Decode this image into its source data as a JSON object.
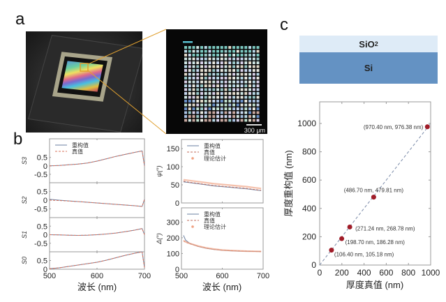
{
  "panels": {
    "a": {
      "letter": "a",
      "photo_alt": "Sensor chip on dark PCB board with iridescent metasurface",
      "micrograph": {
        "scale_bar_label": "300 μm",
        "grid_cols": 19,
        "grid_rows": 20
      },
      "callout_color": "#e0a030"
    },
    "b": {
      "letter": "b"
    },
    "c": {
      "letter": "c",
      "layers": [
        {
          "name": "SiO",
          "sub": "2",
          "color": "#deebf7"
        },
        {
          "name": "Si",
          "sub": "",
          "color": "#6492c3"
        }
      ]
    }
  },
  "chart_data": [
    {
      "id": "stokes",
      "type": "line",
      "xlabel": "波长 (nm)",
      "xlim": [
        500,
        700
      ],
      "xticks": [
        500,
        600,
        700
      ],
      "legend": {
        "entries": [
          "重构值",
          "真值"
        ],
        "placement": "top-left"
      },
      "series_colors": {
        "重构值": "#6a7fa0",
        "真值": "#d9705a"
      },
      "subplots": [
        {
          "ylabel": "S3",
          "ylim": [
            -1,
            1.6
          ],
          "yticks": [
            "0.5",
            "0",
            "-0.5"
          ],
          "ytick_values": [
            0.5,
            0,
            -0.5
          ],
          "x": [
            500,
            520,
            540,
            560,
            580,
            600,
            620,
            640,
            660,
            680,
            695,
            700
          ],
          "series": [
            {
              "name": "重构值",
              "values": [
                0.0,
                0.02,
                0.06,
                0.1,
                0.17,
                0.28,
                0.42,
                0.56,
                0.68,
                0.8,
                0.88,
                0.0
              ]
            },
            {
              "name": "真值",
              "values": [
                0.0,
                0.02,
                0.06,
                0.1,
                0.17,
                0.28,
                0.42,
                0.56,
                0.68,
                0.8,
                0.88,
                0.0
              ]
            }
          ]
        },
        {
          "ylabel": "S2",
          "ylim": [
            -1,
            1
          ],
          "yticks": [
            "0.5",
            "0",
            "-0.5"
          ],
          "ytick_values": [
            0.5,
            0,
            -0.5
          ],
          "x": [
            500,
            520,
            540,
            560,
            580,
            600,
            620,
            640,
            660,
            680,
            695,
            700
          ],
          "series": [
            {
              "name": "重构值",
              "values": [
                0.05,
                0.0,
                -0.04,
                -0.08,
                -0.12,
                -0.16,
                -0.2,
                -0.24,
                -0.28,
                -0.32,
                -0.36,
                0.05
              ]
            },
            {
              "name": "真值",
              "values": [
                0.0,
                -0.02,
                -0.05,
                -0.08,
                -0.12,
                -0.16,
                -0.2,
                -0.24,
                -0.28,
                -0.32,
                -0.36,
                0.05
              ]
            }
          ]
        },
        {
          "ylabel": "S1",
          "ylim": [
            -1,
            1
          ],
          "yticks": [
            "0.5",
            "0",
            "-0.5"
          ],
          "ytick_values": [
            0.5,
            0,
            -0.5
          ],
          "x": [
            500,
            520,
            540,
            560,
            580,
            600,
            620,
            640,
            660,
            680,
            695,
            700
          ],
          "series": [
            {
              "name": "重构值",
              "values": [
                0.0,
                -0.01,
                -0.03,
                -0.04,
                -0.03,
                0.0,
                0.04,
                0.1,
                0.18,
                0.27,
                0.36,
                0.0
              ]
            },
            {
              "name": "真值",
              "values": [
                0.0,
                -0.01,
                -0.03,
                -0.04,
                -0.03,
                0.0,
                0.04,
                0.1,
                0.18,
                0.27,
                0.36,
                0.0
              ]
            }
          ]
        },
        {
          "ylabel": "S0",
          "ylim": [
            0,
            1
          ],
          "yticks": [
            "0.5",
            "0"
          ],
          "ytick_values": [
            0.5,
            0
          ],
          "x": [
            500,
            520,
            540,
            560,
            580,
            600,
            620,
            640,
            660,
            680,
            695,
            700
          ],
          "series": [
            {
              "name": "重构值",
              "values": [
                0.03,
                0.08,
                0.16,
                0.24,
                0.32,
                0.4,
                0.52,
                0.66,
                0.8,
                0.92,
                1.0,
                0.1
              ]
            },
            {
              "name": "真值",
              "values": [
                0.03,
                0.08,
                0.16,
                0.24,
                0.32,
                0.4,
                0.52,
                0.66,
                0.8,
                0.92,
                1.0,
                0.1
              ]
            }
          ]
        }
      ]
    },
    {
      "id": "ellipsometry",
      "type": "line",
      "xlabel": "波长 (nm)",
      "xlim": [
        500,
        700
      ],
      "xticks": [
        500,
        600,
        700
      ],
      "legend": {
        "entries": [
          "重构值",
          "真值",
          "理论估计"
        ],
        "placement": "top-left"
      },
      "series_colors": {
        "重构值": "#6a7fa0",
        "真值": "#c06a5a",
        "理论估计": "#f0a080"
      },
      "subplots": [
        {
          "ylabel": "ψ(°)",
          "ylim": [
            0,
            175
          ],
          "yticks": [
            "150",
            "100",
            "50",
            "0"
          ],
          "ytick_values": [
            150,
            100,
            50,
            0
          ],
          "x": [
            505,
            520,
            540,
            560,
            580,
            600,
            620,
            640,
            660,
            680,
            695
          ],
          "series": [
            {
              "name": "重构值",
              "values": [
                58,
                56,
                53,
                50,
                47,
                45,
                43,
                41,
                39,
                36,
                34
              ]
            },
            {
              "name": "真值",
              "values": [
                60,
                57,
                54,
                51,
                48,
                46,
                44,
                42,
                40,
                37,
                35
              ]
            },
            {
              "name": "理论估计",
              "values": [
                64,
                62,
                59,
                56,
                53,
                51,
                49,
                47,
                45,
                42,
                40
              ]
            }
          ]
        },
        {
          "ylabel": "Δ(°)",
          "ylim": [
            0,
            390
          ],
          "yticks": [
            "300",
            "200",
            "100",
            "0"
          ],
          "ytick_values": [
            300,
            200,
            100,
            0
          ],
          "x": [
            505,
            510,
            520,
            540,
            560,
            580,
            600,
            620,
            640,
            660,
            680,
            695
          ],
          "series": [
            {
              "name": "重构值",
              "values": [
                215,
                185,
                165,
                145,
                133,
                125,
                120,
                117,
                115,
                114,
                113,
                112
              ]
            },
            {
              "name": "真值",
              "values": [
                180,
                172,
                162,
                146,
                134,
                126,
                121,
                118,
                116,
                114,
                113,
                112
              ]
            },
            {
              "name": "理论估计",
              "values": [
                182,
                174,
                164,
                148,
                136,
                128,
                122,
                119,
                117,
                115,
                114,
                113
              ]
            }
          ]
        }
      ]
    },
    {
      "id": "thickness",
      "type": "scatter",
      "xlabel": "厚度真值 (nm)",
      "ylabel": "厚度重构值 (nm)",
      "xlim": [
        0,
        1000
      ],
      "ylim": [
        0,
        1150
      ],
      "xticks": [
        0,
        200,
        400,
        600,
        800,
        1000
      ],
      "yticks": [
        0,
        200,
        400,
        600,
        800,
        1000
      ],
      "reference_line": {
        "from": [
          0,
          0
        ],
        "to": [
          1000,
          1000
        ],
        "style": "dashed",
        "color": "#7a8aa8"
      },
      "point_color": "#a01c28",
      "points": [
        {
          "x": 106.4,
          "y": 105.18,
          "label": "(106.40 nm, 105.18 nm)"
        },
        {
          "x": 198.7,
          "y": 186.28,
          "label": "(198.70 nm, 186.28 nm)"
        },
        {
          "x": 271.24,
          "y": 268.78,
          "label": "(271.24 nm, 268.78 nm)"
        },
        {
          "x": 486.7,
          "y": 479.81,
          "label": "(486.70 nm, 479.81 nm)"
        },
        {
          "x": 970.4,
          "y": 976.38,
          "label": "(970.40 nm, 976.38 nm)"
        }
      ]
    }
  ]
}
